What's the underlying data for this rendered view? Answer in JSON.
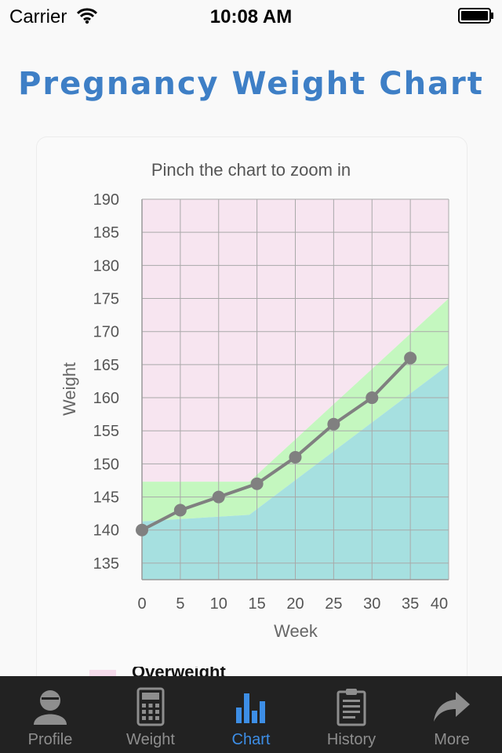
{
  "status_bar": {
    "carrier": "Carrier",
    "time": "10:08 AM"
  },
  "page": {
    "title": "Pregnancy Weight Chart",
    "hint": "Pinch the chart to zoom in"
  },
  "chart_data": {
    "type": "line",
    "xlabel": "Week",
    "ylabel": "Weight",
    "xlim": [
      0,
      40
    ],
    "ylim": [
      132.5,
      190
    ],
    "x_ticks": [
      0,
      5,
      10,
      15,
      20,
      25,
      30,
      35,
      40
    ],
    "y_ticks": [
      135,
      140,
      145,
      150,
      155,
      160,
      165,
      170,
      175,
      180,
      185,
      190
    ],
    "grid": true,
    "bands": [
      {
        "id": "over",
        "color": "#f7e5f0",
        "lower": [
          [
            0,
            147.3
          ],
          [
            14,
            147.3
          ],
          [
            40,
            175
          ]
        ],
        "upper": "top"
      },
      {
        "id": "normal",
        "color": "#c4f7bf",
        "lower": [
          [
            0,
            141.3
          ],
          [
            14,
            142.3
          ],
          [
            40,
            165
          ]
        ],
        "upper": [
          [
            0,
            147.3
          ],
          [
            14,
            147.3
          ],
          [
            40,
            175
          ]
        ]
      },
      {
        "id": "under",
        "color": "#a6e0e0",
        "lower": "bottom",
        "upper": [
          [
            0,
            141.3
          ],
          [
            14,
            142.3
          ],
          [
            40,
            165
          ]
        ]
      }
    ],
    "series": [
      {
        "color": "#808080",
        "x": [
          0,
          5,
          10,
          15,
          20,
          25,
          30,
          35
        ],
        "y": [
          140,
          143,
          145,
          147,
          151,
          156,
          160,
          166
        ]
      }
    ]
  },
  "legend": {
    "first_label": "Overweight",
    "first_color": "#f6dcec"
  },
  "tabs": [
    {
      "label": "Profile",
      "icon": "profile-icon",
      "active": false
    },
    {
      "label": "Weight",
      "icon": "calculator-icon",
      "active": false
    },
    {
      "label": "Chart",
      "icon": "bar-chart-icon",
      "active": true
    },
    {
      "label": "History",
      "icon": "clipboard-icon",
      "active": false
    },
    {
      "label": "More",
      "icon": "share-arrow-icon",
      "active": false
    }
  ]
}
